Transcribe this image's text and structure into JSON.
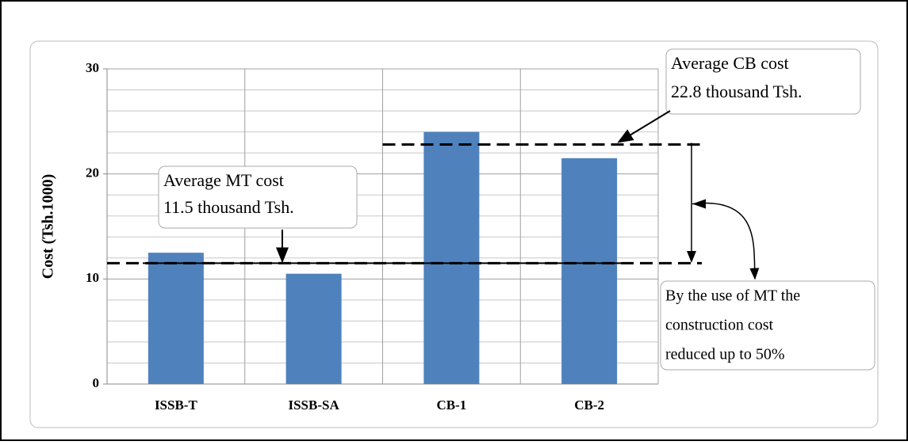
{
  "chart_data": {
    "type": "bar",
    "ylabel": "Cost (Tsh.1000)",
    "categories": [
      "ISSB-T",
      "ISSB-SA",
      "CB-1",
      "CB-2"
    ],
    "values": [
      12.5,
      10.5,
      24,
      21.5
    ],
    "color": "#4f81bd",
    "ylim": [
      0,
      30
    ],
    "yticks": [
      0,
      10,
      20,
      30
    ],
    "grid": true,
    "mt_average": 11.5,
    "cb_average": 22.8,
    "annotations": {
      "mt": [
        "Average MT cost",
        "11.5 thousand Tsh."
      ],
      "cb": [
        "Average CB cost",
        "22.8 thousand Tsh."
      ],
      "saving": [
        "By the use of MT the",
        "construction cost",
        "reduced up to 50%"
      ]
    }
  }
}
